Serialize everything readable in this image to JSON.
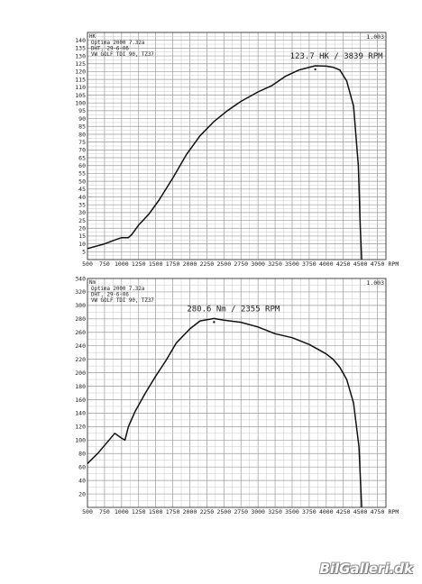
{
  "header": {
    "line1": "Optima 2000 7.32a",
    "line2": "DHT, 29-6-06",
    "line3": "VW GOLF TDI 90, TZ37"
  },
  "watermark": "BilGalleri.dk",
  "colors": {
    "curve": "#111111",
    "grid": "#c9c9c9",
    "paper": "#ffffff"
  },
  "chart_data": [
    {
      "type": "line",
      "ylabel": "HK",
      "x_unit": "RPM",
      "corner_label": "1.003",
      "peak_label": "123.7 HK / 3839 RPM",
      "peak": {
        "x": 3839,
        "y": 123.7
      },
      "xlim": [
        500,
        4875
      ],
      "ylim": [
        0,
        145
      ],
      "x_ticks": [
        500,
        750,
        1000,
        1250,
        1500,
        1750,
        2000,
        2250,
        2500,
        2750,
        3000,
        3250,
        3500,
        3750,
        4000,
        4250,
        4500,
        4750
      ],
      "x_tick_labels": [
        "500",
        "750",
        "1000",
        "1250",
        "1500",
        "1750",
        "2000",
        "2250",
        "2500",
        "2750",
        "3000",
        "3250",
        "3500",
        "3750",
        "4000",
        "4250",
        "4500",
        "4750"
      ],
      "y_ticks": [
        5,
        10,
        15,
        20,
        25,
        30,
        35,
        40,
        45,
        50,
        55,
        60,
        65,
        70,
        75,
        80,
        85,
        90,
        95,
        100,
        105,
        110,
        115,
        120,
        125,
        130,
        135,
        140
      ],
      "series": [
        {
          "x": [
            500,
            750,
            900,
            1000,
            1100,
            1150,
            1250,
            1400,
            1550,
            1750,
            1950,
            2150,
            2350,
            2550,
            2750,
            3000,
            3200,
            3400,
            3600,
            3839,
            4000,
            4100,
            4200,
            4300,
            4400,
            4470,
            4500,
            4520
          ],
          "y": [
            7,
            10,
            12.5,
            14,
            14,
            16,
            22,
            29,
            38,
            52,
            67,
            79,
            88,
            95,
            101,
            107,
            111,
            117,
            121,
            123.7,
            123.5,
            122.8,
            121,
            114,
            98,
            60,
            20,
            0
          ]
        }
      ]
    },
    {
      "type": "line",
      "ylabel": "Nm",
      "x_unit": "RPM",
      "corner_label": "1.003",
      "peak_label": "280.6 Nm / 2355 RPM",
      "peak": {
        "x": 2355,
        "y": 280.6
      },
      "xlim": [
        500,
        4875
      ],
      "ylim": [
        0,
        340
      ],
      "x_ticks": [
        500,
        750,
        1000,
        1250,
        1500,
        1750,
        2000,
        2250,
        2500,
        2750,
        3000,
        3250,
        3500,
        3750,
        4000,
        4250,
        4500,
        4750
      ],
      "x_tick_labels": [
        "500",
        "750",
        "1000",
        "1250",
        "1500",
        "1750",
        "2000",
        "2250",
        "2500",
        "2750",
        "3000",
        "3250",
        "3500",
        "3750",
        "4000",
        "4250",
        "4500",
        "4750"
      ],
      "y_ticks": [
        20,
        40,
        60,
        80,
        100,
        120,
        140,
        160,
        180,
        200,
        220,
        240,
        260,
        280,
        300,
        320,
        340
      ],
      "series": [
        {
          "x": [
            500,
            650,
            800,
            900,
            1000,
            1050,
            1100,
            1200,
            1350,
            1500,
            1650,
            1800,
            2000,
            2150,
            2355,
            2500,
            2750,
            3000,
            3250,
            3500,
            3750,
            4000,
            4100,
            4200,
            4300,
            4400,
            4480,
            4520
          ],
          "y": [
            65,
            80,
            98,
            110,
            103,
            100,
            120,
            143,
            170,
            195,
            218,
            244,
            265,
            277,
            280.6,
            278,
            275,
            268,
            258,
            252,
            242,
            228,
            220,
            208,
            190,
            155,
            90,
            0
          ]
        }
      ]
    }
  ]
}
